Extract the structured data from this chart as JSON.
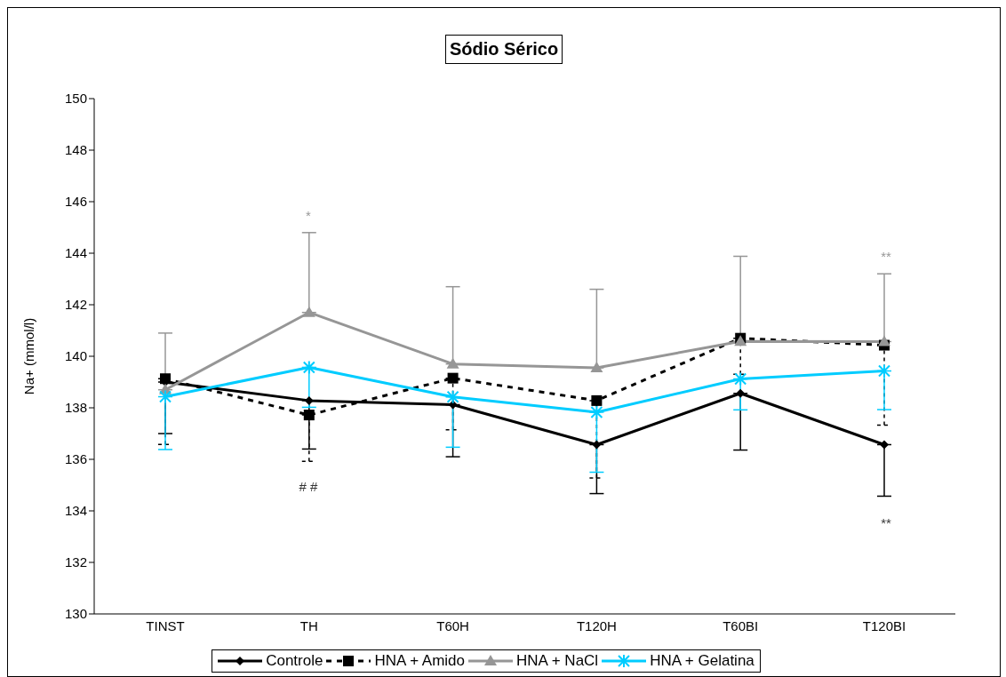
{
  "chart_data": {
    "type": "line",
    "title": "Sódio Sérico",
    "ylabel": "Na+ (mmol/l)",
    "categories": [
      "TINST",
      "TH",
      "T60H",
      "T120H",
      "T60BI",
      "T120BI"
    ],
    "ylim": [
      130,
      150
    ],
    "yticks": [
      130,
      132,
      134,
      136,
      138,
      140,
      142,
      144,
      146,
      148,
      150
    ],
    "grid": false,
    "legend": "bottom",
    "series": [
      {
        "name": "Controle",
        "color": "#000000",
        "marker": "diamond",
        "line_style": "solid",
        "values": [
          139.0,
          138.28,
          138.12,
          136.57,
          138.56,
          136.57
        ],
        "errors": [
          [
            137.0,
            139.0
          ],
          [
            136.4,
            138.28
          ],
          [
            136.1,
            138.12
          ],
          [
            134.67,
            136.57
          ],
          [
            136.36,
            138.56
          ],
          [
            134.57,
            136.57
          ]
        ]
      },
      {
        "name": "HNA + Amido",
        "color": "#000000",
        "marker": "square",
        "line_style": "dashed",
        "values": [
          139.13,
          137.72,
          139.15,
          138.28,
          140.7,
          140.43
        ],
        "errors": [
          [
            136.58,
            139.13
          ],
          [
            135.92,
            137.72
          ],
          [
            137.15,
            139.15
          ],
          [
            135.28,
            138.28
          ],
          [
            139.3,
            140.7
          ],
          [
            137.33,
            140.43
          ]
        ]
      },
      {
        "name": "HNA + NaCl",
        "color": "#969696",
        "marker": "triangle",
        "line_style": "solid",
        "values": [
          138.7,
          141.7,
          139.7,
          139.55,
          140.58,
          140.57
        ],
        "errors": [
          [
            138.7,
            140.9
          ],
          [
            141.7,
            144.8
          ],
          [
            139.7,
            142.7
          ],
          [
            139.55,
            142.6
          ],
          [
            140.58,
            143.88
          ],
          [
            140.57,
            143.2
          ]
        ]
      },
      {
        "name": "HNA + Gelatina",
        "color": "#00ccff",
        "marker": "cross",
        "line_style": "solid",
        "values": [
          138.43,
          139.57,
          138.42,
          137.83,
          139.12,
          139.43
        ],
        "errors": [
          [
            136.38,
            138.43
          ],
          [
            138.02,
            139.57
          ],
          [
            136.47,
            138.42
          ],
          [
            135.5,
            137.83
          ],
          [
            137.92,
            139.12
          ],
          [
            137.93,
            139.43
          ]
        ]
      }
    ],
    "annotations": [
      "*",
      "# #",
      "**",
      "**"
    ]
  }
}
